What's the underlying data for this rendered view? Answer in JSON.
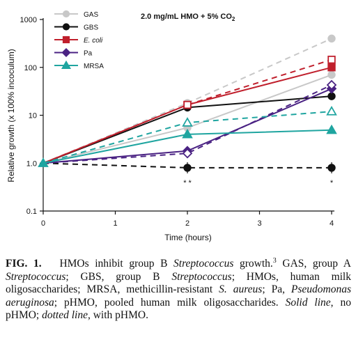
{
  "chart_data": {
    "type": "line",
    "annotation": "2.0 mg/mL HMO + 5% CO2",
    "annotation_main": "2.0 mg/mL HMO + 5% CO",
    "annotation_sub": "2",
    "xlabel": "Time (hours)",
    "ylabel": "Relative growth (x 100% incoculum)",
    "y_scale": "log",
    "ylim": [
      0.1,
      1000
    ],
    "xlim": [
      0,
      4
    ],
    "x_ticks": [
      "0",
      "1",
      "2",
      "3",
      "4"
    ],
    "x_tick_values": [
      0,
      1,
      2,
      3,
      4
    ],
    "y_ticks": [
      "0.1",
      "1.0",
      "10",
      "100",
      "1000"
    ],
    "y_tick_values": [
      0.1,
      1,
      10,
      100,
      1000
    ],
    "grid": false,
    "legend_position": "top-left",
    "significance": [
      {
        "x": 2,
        "label": "* *"
      },
      {
        "x": 4,
        "label": "*"
      }
    ],
    "series": [
      {
        "name": "GAS",
        "color": "#c8c8c8",
        "marker": "circle",
        "no_hmo": [
          [
            0,
            1.0
          ],
          [
            2,
            5.5
          ],
          [
            4,
            70
          ]
        ],
        "with_hmo": [
          [
            0,
            1.0
          ],
          [
            2,
            18
          ],
          [
            4,
            400
          ]
        ]
      },
      {
        "name": "GBS",
        "color": "#111111",
        "marker": "circle",
        "no_hmo": [
          [
            0,
            1.0
          ],
          [
            2,
            14.5
          ],
          [
            4,
            25
          ]
        ],
        "with_hmo": [
          [
            0,
            1.0
          ],
          [
            2,
            0.8
          ],
          [
            4,
            0.8
          ]
        ]
      },
      {
        "name": "E. coli",
        "color": "#c01f2c",
        "marker": "square",
        "no_hmo": [
          [
            0,
            1.0
          ],
          [
            2,
            16.5
          ],
          [
            4,
            100
          ]
        ],
        "with_hmo": [
          [
            0,
            1.0
          ],
          [
            2,
            16.5
          ],
          [
            4,
            145
          ]
        ]
      },
      {
        "name": "Pa",
        "color": "#4a2283",
        "marker": "diamond",
        "no_hmo": [
          [
            0,
            1.0
          ],
          [
            2,
            1.8
          ],
          [
            4,
            36
          ]
        ],
        "with_hmo": [
          [
            0,
            1.0
          ],
          [
            2,
            1.6
          ],
          [
            4,
            43
          ]
        ]
      },
      {
        "name": "MRSA",
        "color": "#1fa5a0",
        "marker": "triangle",
        "no_hmo": [
          [
            0,
            1.0
          ],
          [
            2,
            4.0
          ],
          [
            4,
            4.9
          ]
        ],
        "with_hmo": [
          [
            0,
            1.0
          ],
          [
            2,
            7.0
          ],
          [
            4,
            12
          ]
        ]
      }
    ]
  },
  "caption": {
    "label": "FIG. 1.",
    "t1": "HMOs inhibit group B ",
    "t2": "Streptococcus",
    "t3": " growth.",
    "ref": "3",
    "t4": " GAS, group A ",
    "t5": "Streptococcus",
    "t6": "; GBS, group B ",
    "t7": "Streptococcus",
    "t8": "; HMOs, human milk oligosaccharides; MRSA, methicillin-resistant ",
    "t9": "S. aureus",
    "t10": "; Pa, ",
    "t11": "Pseudomonas aeruginosa",
    "t12": "; pHMO, pooled human milk oligosaccharides. ",
    "t13": "Solid line",
    "t14": ", no pHMO; ",
    "t15": "dotted line",
    "t16": ", with pHMO."
  }
}
